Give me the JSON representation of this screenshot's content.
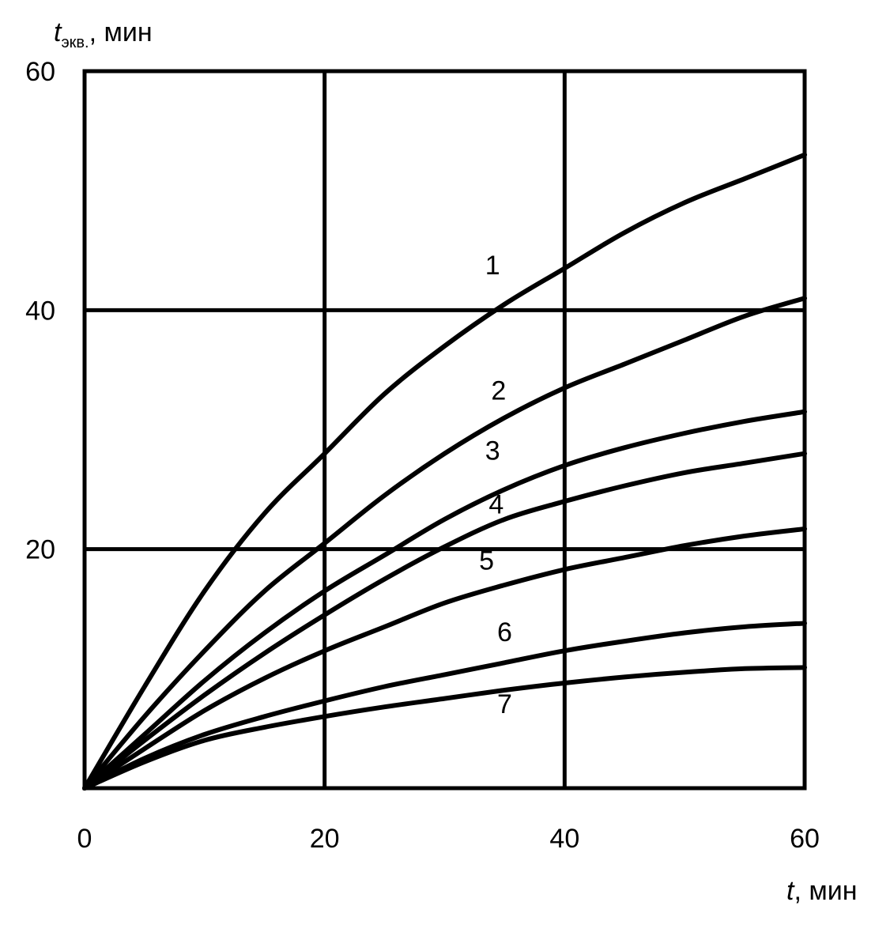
{
  "chart_data": {
    "type": "line",
    "xlabel": {
      "var": "t",
      "unit": ", мин"
    },
    "ylabel": {
      "var": "t",
      "sub": "экв.",
      "unit": ", мин"
    },
    "xlim": [
      0,
      60
    ],
    "ylim": [
      0,
      60
    ],
    "x_ticks": [
      0,
      20,
      40,
      60
    ],
    "y_ticks": [
      20,
      40,
      60
    ],
    "grid": true,
    "series": [
      {
        "label": "1",
        "points": [
          [
            0,
            0
          ],
          [
            5,
            8.5
          ],
          [
            10,
            16.5
          ],
          [
            15,
            23
          ],
          [
            20,
            28
          ],
          [
            25,
            33
          ],
          [
            30,
            37
          ],
          [
            35,
            40.5
          ],
          [
            40,
            43.5
          ],
          [
            45,
            46.5
          ],
          [
            50,
            49
          ],
          [
            55,
            51
          ],
          [
            60,
            53
          ]
        ],
        "label_pos": [
          34,
          43
        ]
      },
      {
        "label": "2",
        "points": [
          [
            0,
            0
          ],
          [
            5,
            6
          ],
          [
            10,
            11.5
          ],
          [
            15,
            16.5
          ],
          [
            20,
            20.5
          ],
          [
            25,
            24.5
          ],
          [
            30,
            28
          ],
          [
            35,
            31
          ],
          [
            40,
            33.5
          ],
          [
            45,
            35.5
          ],
          [
            50,
            37.5
          ],
          [
            55,
            39.5
          ],
          [
            60,
            41
          ]
        ],
        "label_pos": [
          34.5,
          32.5
        ]
      },
      {
        "label": "3",
        "points": [
          [
            0,
            0
          ],
          [
            5,
            4.5
          ],
          [
            10,
            9
          ],
          [
            15,
            13
          ],
          [
            20,
            16.5
          ],
          [
            25,
            19.5
          ],
          [
            30,
            22.5
          ],
          [
            35,
            25
          ],
          [
            40,
            27
          ],
          [
            45,
            28.5
          ],
          [
            50,
            29.7
          ],
          [
            55,
            30.7
          ],
          [
            60,
            31.5
          ]
        ],
        "label_pos": [
          34,
          27.5
        ]
      },
      {
        "label": "4",
        "points": [
          [
            0,
            0
          ],
          [
            5,
            4
          ],
          [
            10,
            7.8
          ],
          [
            15,
            11.3
          ],
          [
            20,
            14.5
          ],
          [
            25,
            17.5
          ],
          [
            30,
            20.2
          ],
          [
            35,
            22.5
          ],
          [
            40,
            24
          ],
          [
            45,
            25.3
          ],
          [
            50,
            26.4
          ],
          [
            55,
            27.2
          ],
          [
            60,
            28
          ]
        ],
        "label_pos": [
          34.3,
          23
        ]
      },
      {
        "label": "5",
        "points": [
          [
            0,
            0
          ],
          [
            5,
            3.3
          ],
          [
            10,
            6.5
          ],
          [
            15,
            9.2
          ],
          [
            20,
            11.5
          ],
          [
            25,
            13.5
          ],
          [
            30,
            15.5
          ],
          [
            35,
            17
          ],
          [
            40,
            18.3
          ],
          [
            45,
            19.3
          ],
          [
            50,
            20.3
          ],
          [
            55,
            21.1
          ],
          [
            60,
            21.7
          ]
        ],
        "label_pos": [
          33.5,
          18.3
        ]
      },
      {
        "label": "6",
        "points": [
          [
            0,
            0
          ],
          [
            5,
            2.5
          ],
          [
            10,
            4.5
          ],
          [
            15,
            6
          ],
          [
            20,
            7.3
          ],
          [
            25,
            8.5
          ],
          [
            30,
            9.5
          ],
          [
            35,
            10.5
          ],
          [
            40,
            11.5
          ],
          [
            45,
            12.3
          ],
          [
            50,
            13
          ],
          [
            55,
            13.5
          ],
          [
            60,
            13.8
          ]
        ],
        "label_pos": [
          35,
          12.3
        ]
      },
      {
        "label": "7",
        "points": [
          [
            0,
            0
          ],
          [
            5,
            2.2
          ],
          [
            10,
            4
          ],
          [
            15,
            5.1
          ],
          [
            20,
            6
          ],
          [
            25,
            6.8
          ],
          [
            30,
            7.5
          ],
          [
            35,
            8.2
          ],
          [
            40,
            8.8
          ],
          [
            45,
            9.3
          ],
          [
            50,
            9.7
          ],
          [
            55,
            10
          ],
          [
            60,
            10.1
          ]
        ],
        "label_pos": [
          35,
          6.3
        ]
      }
    ]
  }
}
